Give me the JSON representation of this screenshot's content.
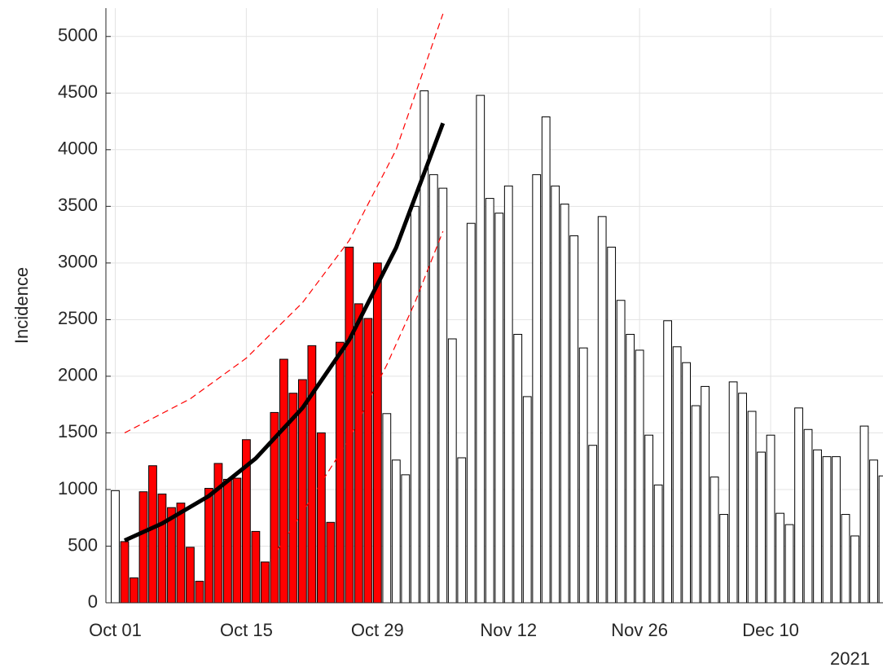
{
  "chart_data": {
    "type": "bar",
    "y_label": "Incidence",
    "year_label": "2021",
    "x": [
      "2021-10-01",
      "2021-10-02",
      "2021-10-03",
      "2021-10-04",
      "2021-10-05",
      "2021-10-06",
      "2021-10-07",
      "2021-10-08",
      "2021-10-09",
      "2021-10-10",
      "2021-10-11",
      "2021-10-12",
      "2021-10-13",
      "2021-10-14",
      "2021-10-15",
      "2021-10-16",
      "2021-10-17",
      "2021-10-18",
      "2021-10-19",
      "2021-10-20",
      "2021-10-21",
      "2021-10-22",
      "2021-10-23",
      "2021-10-24",
      "2021-10-25",
      "2021-10-26",
      "2021-10-27",
      "2021-10-28",
      "2021-10-29",
      "2021-10-30",
      "2021-10-31",
      "2021-11-01",
      "2021-11-02",
      "2021-11-03",
      "2021-11-04",
      "2021-11-05",
      "2021-11-06",
      "2021-11-07",
      "2021-11-08",
      "2021-11-09",
      "2021-11-10",
      "2021-11-11",
      "2021-11-12",
      "2021-11-13",
      "2021-11-14",
      "2021-11-15",
      "2021-11-16",
      "2021-11-17",
      "2021-11-18",
      "2021-11-19",
      "2021-11-20",
      "2021-11-21",
      "2021-11-22",
      "2021-11-23",
      "2021-11-24",
      "2021-11-25",
      "2021-11-26",
      "2021-11-27",
      "2021-11-28",
      "2021-11-29",
      "2021-11-30",
      "2021-12-01",
      "2021-12-02",
      "2021-12-03",
      "2021-12-04",
      "2021-12-05",
      "2021-12-06",
      "2021-12-07",
      "2021-12-08",
      "2021-12-09",
      "2021-12-10",
      "2021-12-11",
      "2021-12-12",
      "2021-12-13",
      "2021-12-14",
      "2021-12-15",
      "2021-12-16",
      "2021-12-17",
      "2021-12-18",
      "2021-12-19",
      "2021-12-20",
      "2021-12-21",
      "2021-12-22"
    ],
    "values": [
      990,
      540,
      220,
      980,
      1210,
      960,
      840,
      880,
      490,
      190,
      1010,
      1230,
      1090,
      1100,
      1440,
      630,
      360,
      1680,
      2150,
      1850,
      1970,
      2270,
      1500,
      710,
      2300,
      3140,
      2640,
      2510,
      3000,
      1670,
      1260,
      1130,
      3500,
      4520,
      3780,
      3660,
      2330,
      1280,
      3350,
      4480,
      3570,
      3440,
      3680,
      2370,
      1820,
      3780,
      4290,
      3680,
      3520,
      3240,
      2250,
      1390,
      3410,
      3140,
      2670,
      2370,
      2230,
      1480,
      1040,
      2490,
      2260,
      2120,
      1740,
      1910,
      1110,
      780,
      1950,
      1850,
      1690,
      1330,
      1480,
      790,
      690,
      1720,
      1530,
      1350,
      1290,
      1290,
      780,
      590,
      1560,
      1260,
      1120
    ],
    "color": "#ffffff",
    "highlight_range": [
      "2021-10-02",
      "2021-10-29"
    ],
    "highlight_color": "#ff0000",
    "curves": [
      {
        "style": "solid",
        "color": "#000000",
        "x": [
          "2021-10-02",
          "2021-10-06",
          "2021-10-11",
          "2021-10-16",
          "2021-10-21",
          "2021-10-26",
          "2021-10-31",
          "2021-11-05"
        ],
        "values": [
          550,
          700,
          943,
          1274,
          1720,
          2322,
          3136,
          4234
        ]
      },
      {
        "style": "dashed",
        "color": "#ff0000",
        "x": [
          "2021-10-02",
          "2021-10-09",
          "2021-10-15",
          "2021-10-21",
          "2021-10-26",
          "2021-10-31",
          "2021-11-05"
        ],
        "values": [
          1500,
          1800,
          2160,
          2650,
          3200,
          4000,
          5200
        ]
      },
      {
        "style": "dashed",
        "color": "#ff0000",
        "x": [
          "2021-10-17",
          "2021-10-21",
          "2021-10-26",
          "2021-10-30",
          "2021-11-02",
          "2021-11-05"
        ],
        "values": [
          300,
          800,
          1450,
          2100,
          2650,
          3280
        ]
      }
    ],
    "xlim": [
      "2021-09-30",
      "2021-12-22"
    ],
    "xticks": [
      {
        "value": "2021-10-01",
        "label": "Oct 01"
      },
      {
        "value": "2021-10-15",
        "label": "Oct 15"
      },
      {
        "value": "2021-10-29",
        "label": "Oct 29"
      },
      {
        "value": "2021-11-12",
        "label": "Nov 12"
      },
      {
        "value": "2021-11-26",
        "label": "Nov 26"
      },
      {
        "value": "2021-12-10",
        "label": "Dec 10"
      }
    ],
    "ylim": [
      0,
      5250
    ],
    "yticks": [
      0,
      500,
      1000,
      1500,
      2000,
      2500,
      3000,
      3500,
      4000,
      4500,
      5000
    ],
    "grid": true
  }
}
